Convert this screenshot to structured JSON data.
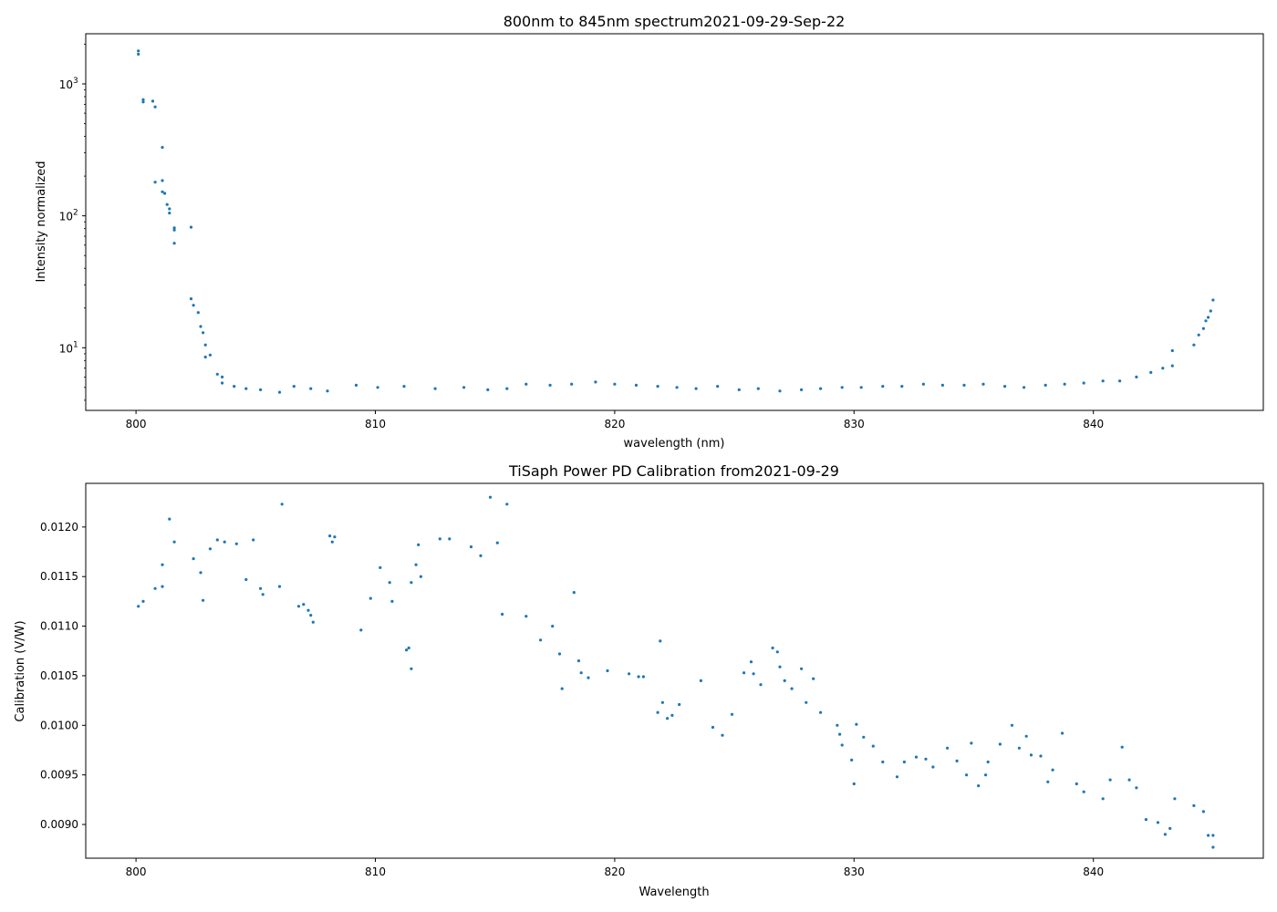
{
  "chart_data": [
    {
      "type": "scatter",
      "title": "800nm to 845nm spectrum2021-09-29-Sep-22",
      "xlabel": "wavelength (nm)",
      "ylabel": "Intensity normalized",
      "yscale": "log",
      "xlim": [
        797.9,
        847.1
      ],
      "ylim": [
        3.35,
        2400
      ],
      "xticks": [
        800,
        810,
        820,
        830,
        840
      ],
      "yticks": [
        {
          "value": 10,
          "label": "10",
          "exp": "1"
        },
        {
          "value": 100,
          "label": "10",
          "exp": "2"
        },
        {
          "value": 1000,
          "label": "10",
          "exp": "3"
        }
      ],
      "grid": false,
      "marker_color": "#1f77b4",
      "series": [
        {
          "x": [
            800.1,
            800.1,
            800.3,
            800.3,
            800.7,
            800.8,
            800.8,
            801.1,
            801.1,
            801.1,
            801.2,
            801.3,
            801.4,
            801.4,
            801.6,
            801.6,
            801.6,
            802.3,
            802.3,
            802.4,
            802.6,
            802.7,
            802.8,
            802.9,
            802.9,
            803.1,
            803.4,
            803.6,
            803.6,
            804.1,
            804.6,
            805.2,
            806.0,
            806.6,
            807.3,
            808.0,
            809.2,
            810.1,
            811.2,
            812.5,
            813.7,
            814.7,
            815.5,
            816.3,
            817.3,
            818.2,
            819.2,
            820.0,
            820.9,
            821.8,
            822.6,
            823.4,
            824.3,
            825.2,
            826.0,
            826.9,
            827.8,
            828.6,
            829.5,
            830.3,
            831.2,
            832.0,
            832.9,
            833.7,
            834.6,
            835.4,
            836.3,
            837.1,
            838.0,
            838.8,
            839.6,
            840.4,
            841.1,
            841.8,
            842.4,
            842.9,
            843.3,
            843.3,
            844.2,
            844.4,
            844.6,
            844.7,
            844.8,
            844.9,
            845.0
          ],
          "y": [
            1780,
            1680,
            760,
            730,
            740,
            670,
            180,
            330,
            185,
            152,
            148,
            122,
            113,
            105,
            81,
            78,
            62,
            82,
            23.5,
            21,
            18.5,
            14.5,
            13,
            10.5,
            8.5,
            8.8,
            6.3,
            6.0,
            5.4,
            5.1,
            4.9,
            4.8,
            4.6,
            5.1,
            4.9,
            4.7,
            5.2,
            5.0,
            5.1,
            4.9,
            5.0,
            4.8,
            4.9,
            5.3,
            5.2,
            5.3,
            5.5,
            5.3,
            5.2,
            5.1,
            5.0,
            4.9,
            5.1,
            4.8,
            4.9,
            4.7,
            4.8,
            4.9,
            5.0,
            5.0,
            5.1,
            5.1,
            5.3,
            5.2,
            5.2,
            5.3,
            5.1,
            5.0,
            5.2,
            5.3,
            5.4,
            5.6,
            5.6,
            6.0,
            6.5,
            7.0,
            7.3,
            9.5,
            10.5,
            12.5,
            14,
            16,
            17,
            19,
            23
          ]
        }
      ]
    },
    {
      "type": "scatter",
      "title": "TiSaph Power PD Calibration from2021-09-29",
      "xlabel": "Wavelength",
      "ylabel": "Calibration (V/W)",
      "xlim": [
        797.9,
        847.1
      ],
      "ylim": [
        0.00866,
        0.01244
      ],
      "xticks": [
        800,
        810,
        820,
        830,
        840
      ],
      "yticks": [
        0.009,
        0.0095,
        0.01,
        0.0105,
        0.011,
        0.0115,
        0.012
      ],
      "ytick_labels": [
        "0.0090",
        "0.0095",
        "0.0100",
        "0.0105",
        "0.0110",
        "0.0115",
        "0.0120"
      ],
      "grid": false,
      "marker_color": "#1f77b4",
      "series": [
        {
          "x": [
            800.1,
            800.3,
            800.8,
            801.1,
            801.1,
            801.4,
            801.6,
            802.4,
            802.7,
            802.8,
            803.1,
            803.4,
            803.7,
            804.2,
            804.6,
            804.9,
            805.2,
            805.3,
            806.0,
            806.1,
            806.8,
            807.0,
            807.2,
            807.3,
            807.4,
            808.1,
            808.2,
            808.3,
            809.4,
            809.8,
            810.2,
            810.6,
            810.7,
            811.3,
            811.4,
            811.5,
            811.5,
            811.7,
            811.8,
            811.9,
            812.7,
            813.1,
            814.0,
            814.4,
            814.8,
            815.1,
            815.3,
            815.5,
            816.3,
            816.9,
            817.4,
            817.7,
            817.8,
            818.3,
            818.5,
            818.6,
            818.9,
            819.7,
            820.6,
            821.0,
            821.2,
            821.8,
            821.9,
            822.0,
            822.2,
            822.4,
            822.7,
            823.6,
            824.1,
            824.5,
            824.9,
            825.4,
            825.7,
            825.8,
            826.1,
            826.6,
            826.8,
            826.9,
            827.1,
            827.4,
            827.8,
            828.0,
            828.3,
            828.6,
            829.3,
            829.4,
            829.5,
            829.9,
            830.0,
            830.1,
            830.4,
            830.8,
            831.2,
            831.8,
            832.1,
            832.6,
            833.0,
            833.3,
            833.9,
            834.3,
            834.7,
            834.9,
            835.2,
            835.5,
            835.6,
            836.1,
            836.6,
            836.9,
            837.2,
            837.4,
            837.8,
            838.1,
            838.3,
            838.7,
            839.3,
            839.6,
            840.4,
            840.7,
            841.2,
            841.5,
            841.8,
            842.2,
            842.7,
            843.0,
            843.2,
            843.4,
            844.2,
            844.6,
            844.8,
            845.0,
            845.0
          ],
          "y": [
            0.0112,
            0.01125,
            0.01138,
            0.01162,
            0.0114,
            0.01208,
            0.01185,
            0.01168,
            0.01154,
            0.01126,
            0.01178,
            0.01187,
            0.01185,
            0.01183,
            0.01147,
            0.01187,
            0.01138,
            0.01132,
            0.0114,
            0.01223,
            0.0112,
            0.01122,
            0.01116,
            0.01111,
            0.01104,
            0.01191,
            0.01185,
            0.0119,
            0.01096,
            0.01128,
            0.01159,
            0.01144,
            0.01125,
            0.01076,
            0.01078,
            0.01057,
            0.01144,
            0.01162,
            0.01182,
            0.0115,
            0.01188,
            0.01188,
            0.0118,
            0.01171,
            0.0123,
            0.01184,
            0.01112,
            0.01223,
            0.0111,
            0.01086,
            0.011,
            0.01072,
            0.01037,
            0.01134,
            0.01065,
            0.01053,
            0.01048,
            0.01055,
            0.01052,
            0.01049,
            0.01049,
            0.01013,
            0.01085,
            0.01023,
            0.01007,
            0.0101,
            0.01021,
            0.01045,
            0.00998,
            0.0099,
            0.01011,
            0.01053,
            0.01064,
            0.01052,
            0.01041,
            0.01078,
            0.01074,
            0.01059,
            0.01045,
            0.01037,
            0.01057,
            0.01023,
            0.01047,
            0.01013,
            0.01,
            0.00991,
            0.0098,
            0.00965,
            0.00941,
            0.01001,
            0.00988,
            0.00979,
            0.00963,
            0.00948,
            0.00963,
            0.00968,
            0.00966,
            0.00958,
            0.00977,
            0.00964,
            0.0095,
            0.00982,
            0.00939,
            0.0095,
            0.00963,
            0.00981,
            0.01,
            0.00977,
            0.00989,
            0.0097,
            0.00969,
            0.00943,
            0.00955,
            0.00992,
            0.00941,
            0.00933,
            0.00926,
            0.00945,
            0.00978,
            0.00945,
            0.00937,
            0.00905,
            0.00902,
            0.0089,
            0.00896,
            0.00926,
            0.00919,
            0.00913,
            0.00889,
            0.00889,
            0.00877
          ]
        }
      ]
    }
  ]
}
